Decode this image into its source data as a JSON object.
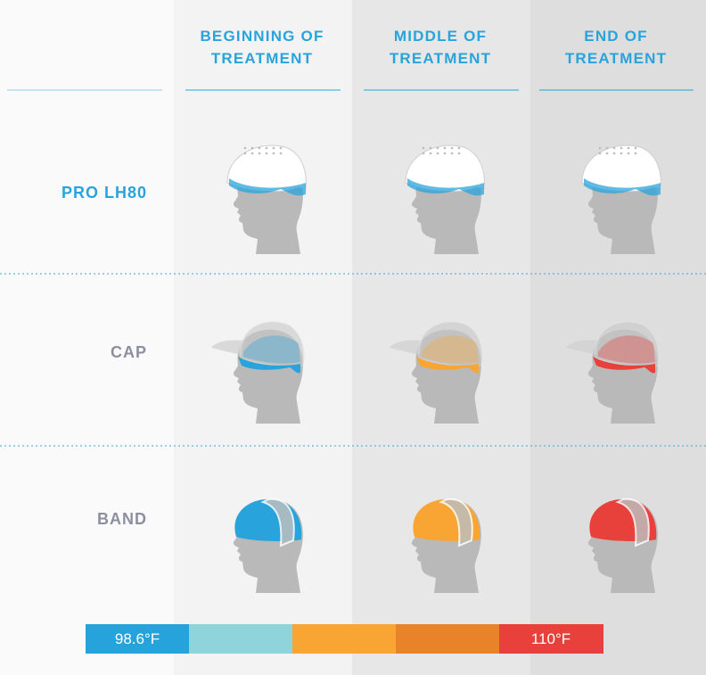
{
  "columns": [
    {
      "lines": [
        "BEGINNING OF",
        "TREATMENT"
      ]
    },
    {
      "lines": [
        "MIDDLE OF",
        "TREATMENT"
      ]
    },
    {
      "lines": [
        "END OF",
        "TREATMENT"
      ]
    }
  ],
  "rows": [
    {
      "label": "PRO LH80"
    },
    {
      "label": "CAP"
    },
    {
      "label": "BAND"
    }
  ],
  "scale": {
    "start": "98.6°F",
    "end": "110°F"
  }
}
